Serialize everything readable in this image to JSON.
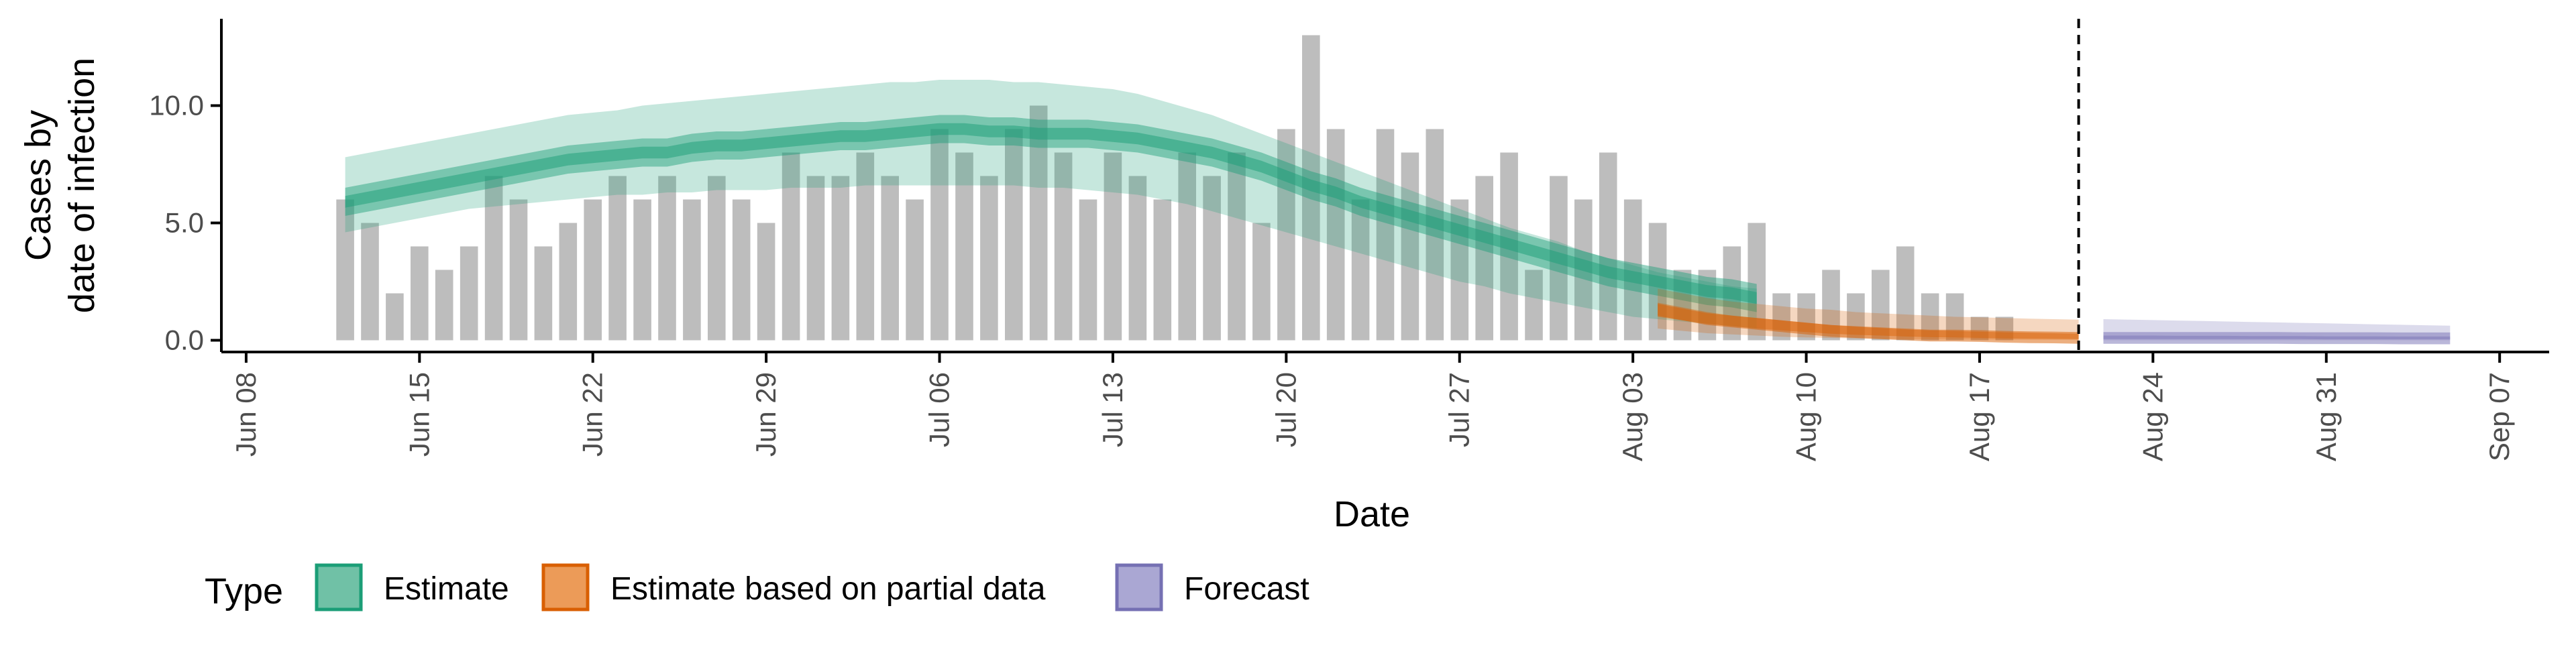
{
  "chart_data": {
    "type": "bar",
    "xlabel": "Date",
    "ylabel_lines": [
      "Cases by",
      "date of infection"
    ],
    "y_ticks": [
      0,
      5,
      10
    ],
    "y_tick_labels": [
      "0.0",
      "5.0",
      "10.0"
    ],
    "ylim": [
      -0.5,
      13.7
    ],
    "xlim": [
      "2020-06-07",
      "2020-09-09"
    ],
    "x_ticks": [
      {
        "date": "2020-06-08",
        "label": "Jun 08"
      },
      {
        "date": "2020-06-15",
        "label": "Jun 15"
      },
      {
        "date": "2020-06-22",
        "label": "Jun 22"
      },
      {
        "date": "2020-06-29",
        "label": "Jun 29"
      },
      {
        "date": "2020-07-06",
        "label": "Jul 06"
      },
      {
        "date": "2020-07-13",
        "label": "Jul 13"
      },
      {
        "date": "2020-07-20",
        "label": "Jul 20"
      },
      {
        "date": "2020-07-27",
        "label": "Jul 27"
      },
      {
        "date": "2020-08-03",
        "label": "Aug 03"
      },
      {
        "date": "2020-08-10",
        "label": "Aug 10"
      },
      {
        "date": "2020-08-17",
        "label": "Aug 17"
      },
      {
        "date": "2020-08-24",
        "label": "Aug 24"
      },
      {
        "date": "2020-08-31",
        "label": "Aug 31"
      },
      {
        "date": "2020-09-07",
        "label": "Sep 07"
      }
    ],
    "grid": false,
    "bars": {
      "color": "#bdbdbd",
      "start_date": "2020-06-12",
      "values": [
        6,
        5,
        2,
        4,
        3,
        4,
        7,
        6,
        4,
        5,
        6,
        7,
        6,
        7,
        6,
        7,
        6,
        5,
        8,
        7,
        7,
        8,
        7,
        6,
        9,
        8,
        7,
        9,
        10,
        8,
        6,
        8,
        7,
        6,
        8,
        7,
        8,
        5,
        9,
        13,
        9,
        6,
        9,
        8,
        9,
        6,
        7,
        8,
        3,
        7,
        6,
        8,
        6,
        5,
        3,
        3,
        4,
        5,
        2,
        2,
        3,
        2,
        3,
        4,
        2,
        2,
        1,
        1
      ]
    },
    "forecast_divider_date": "2020-08-21",
    "bands": [
      {
        "type": "Estimate",
        "color": "#1b9e77",
        "start_date": "2020-06-12",
        "median": [
          5.9,
          6.1,
          6.3,
          6.5,
          6.7,
          6.9,
          7.1,
          7.3,
          7.5,
          7.7,
          7.8,
          7.9,
          8.0,
          8.0,
          8.2,
          8.3,
          8.3,
          8.4,
          8.5,
          8.6,
          8.7,
          8.7,
          8.8,
          8.9,
          9.0,
          9.0,
          8.9,
          8.9,
          8.8,
          8.8,
          8.8,
          8.7,
          8.6,
          8.4,
          8.2,
          8.0,
          7.7,
          7.4,
          7.0,
          6.6,
          6.3,
          5.9,
          5.6,
          5.3,
          5.0,
          4.7,
          4.4,
          4.1,
          3.8,
          3.5,
          3.2,
          2.9,
          2.7,
          2.5,
          2.3,
          2.1,
          2.0,
          1.8
        ],
        "inner_lower": [
          5.3,
          5.5,
          5.7,
          5.9,
          6.1,
          6.3,
          6.5,
          6.7,
          6.9,
          7.1,
          7.2,
          7.3,
          7.4,
          7.4,
          7.6,
          7.7,
          7.7,
          7.8,
          7.9,
          8.0,
          8.1,
          8.1,
          8.2,
          8.3,
          8.4,
          8.4,
          8.3,
          8.3,
          8.2,
          8.2,
          8.2,
          8.1,
          8.0,
          7.8,
          7.6,
          7.4,
          7.1,
          6.8,
          6.4,
          6.0,
          5.7,
          5.3,
          5.0,
          4.7,
          4.4,
          4.1,
          3.8,
          3.5,
          3.2,
          2.9,
          2.6,
          2.3,
          2.1,
          1.9,
          1.7,
          1.5,
          1.4,
          1.2
        ],
        "inner_upper": [
          6.5,
          6.7,
          6.9,
          7.1,
          7.3,
          7.5,
          7.7,
          7.9,
          8.1,
          8.3,
          8.4,
          8.5,
          8.6,
          8.6,
          8.8,
          8.9,
          8.9,
          9.0,
          9.1,
          9.2,
          9.3,
          9.3,
          9.4,
          9.5,
          9.6,
          9.6,
          9.5,
          9.5,
          9.4,
          9.4,
          9.4,
          9.3,
          9.2,
          9.0,
          8.8,
          8.6,
          8.3,
          8.0,
          7.6,
          7.2,
          6.9,
          6.5,
          6.2,
          5.9,
          5.6,
          5.3,
          5.0,
          4.7,
          4.4,
          4.1,
          3.8,
          3.5,
          3.3,
          3.1,
          2.9,
          2.7,
          2.6,
          2.4
        ],
        "outer_lower": [
          4.6,
          4.8,
          5.0,
          5.2,
          5.4,
          5.6,
          5.7,
          5.8,
          5.9,
          6.0,
          6.1,
          6.2,
          6.2,
          6.3,
          6.3,
          6.4,
          6.4,
          6.4,
          6.5,
          6.5,
          6.5,
          6.6,
          6.6,
          6.6,
          6.6,
          6.6,
          6.6,
          6.6,
          6.5,
          6.5,
          6.4,
          6.3,
          6.2,
          6.0,
          5.8,
          5.5,
          5.2,
          4.9,
          4.6,
          4.3,
          4.0,
          3.7,
          3.4,
          3.1,
          2.8,
          2.5,
          2.3,
          2.0,
          1.8,
          1.6,
          1.4,
          1.2,
          1.0,
          0.9,
          0.8,
          0.7,
          0.6,
          0.5
        ],
        "outer_upper": [
          7.8,
          8.0,
          8.2,
          8.4,
          8.6,
          8.8,
          9.0,
          9.2,
          9.4,
          9.6,
          9.7,
          9.8,
          10.0,
          10.1,
          10.2,
          10.3,
          10.4,
          10.5,
          10.6,
          10.7,
          10.8,
          10.9,
          11.0,
          11.0,
          11.1,
          11.1,
          11.1,
          11.0,
          11.0,
          10.9,
          10.8,
          10.7,
          10.5,
          10.2,
          9.9,
          9.6,
          9.2,
          8.8,
          8.4,
          8.0,
          7.6,
          7.2,
          6.8,
          6.4,
          6.0,
          5.6,
          5.2,
          4.8,
          4.5,
          4.2,
          3.8,
          3.5,
          3.2,
          2.9,
          2.7,
          2.5,
          2.3,
          2.2
        ]
      },
      {
        "type": "Estimate based on partial data",
        "color": "#d95f02",
        "start_date": "2020-08-04",
        "median": [
          1.3,
          1.1,
          0.9,
          0.8,
          0.7,
          0.6,
          0.5,
          0.4,
          0.35,
          0.3,
          0.25,
          0.2,
          0.2,
          0.18,
          0.15,
          0.13,
          0.12,
          0.1
        ],
        "inner_lower": [
          1.0,
          0.85,
          0.7,
          0.6,
          0.5,
          0.42,
          0.35,
          0.28,
          0.23,
          0.2,
          0.16,
          0.13,
          0.12,
          0.1,
          0.08,
          0.07,
          0.06,
          0.05
        ],
        "inner_upper": [
          1.6,
          1.4,
          1.2,
          1.05,
          0.95,
          0.85,
          0.75,
          0.65,
          0.58,
          0.52,
          0.46,
          0.42,
          0.4,
          0.37,
          0.34,
          0.32,
          0.3,
          0.28
        ],
        "outer_lower": [
          0.5,
          0.4,
          0.3,
          0.25,
          0.2,
          0.15,
          0.12,
          0.1,
          0.08,
          0.06,
          0.05,
          0.04,
          0.03,
          0.03,
          0.02,
          0.02,
          0.02,
          0.02
        ],
        "outer_upper": [
          2.2,
          2.0,
          1.8,
          1.65,
          1.55,
          1.45,
          1.35,
          1.3,
          1.2,
          1.15,
          1.1,
          1.05,
          1.0,
          0.98,
          0.95,
          0.92,
          0.9,
          0.88
        ]
      },
      {
        "type": "Forecast",
        "color": "#7570b3",
        "start_date": "2020-08-22",
        "median": [
          0.1,
          0.1,
          0.1,
          0.1,
          0.1,
          0.1,
          0.1,
          0.1,
          0.09,
          0.09,
          0.09,
          0.09,
          0.08,
          0.08,
          0.08
        ],
        "inner_lower": [
          0.05,
          0.05,
          0.05,
          0.05,
          0.05,
          0.05,
          0.05,
          0.05,
          0.05,
          0.04,
          0.04,
          0.04,
          0.04,
          0.04,
          0.04
        ],
        "inner_upper": [
          0.2,
          0.2,
          0.2,
          0.19,
          0.19,
          0.19,
          0.18,
          0.18,
          0.18,
          0.17,
          0.17,
          0.17,
          0.16,
          0.16,
          0.16
        ],
        "outer_lower": [
          0.0,
          0.0,
          0.0,
          0.0,
          0.0,
          0.0,
          0.0,
          0.0,
          0.0,
          0.0,
          0.0,
          0.0,
          0.0,
          0.0,
          0.0
        ],
        "outer_upper": [
          0.9,
          0.88,
          0.86,
          0.84,
          0.82,
          0.8,
          0.78,
          0.76,
          0.74,
          0.72,
          0.7,
          0.68,
          0.66,
          0.64,
          0.62
        ]
      }
    ],
    "legend": {
      "title": "Type",
      "placement": "bottom",
      "items": [
        {
          "label": "Estimate",
          "fill": "#70c1a6",
          "stroke": "#1b9e77"
        },
        {
          "label": "Estimate based on partial data",
          "fill": "#ec9b58",
          "stroke": "#d95f02"
        },
        {
          "label": "Forecast",
          "fill": "#aaa7d3",
          "stroke": "#7570b3"
        }
      ]
    }
  }
}
